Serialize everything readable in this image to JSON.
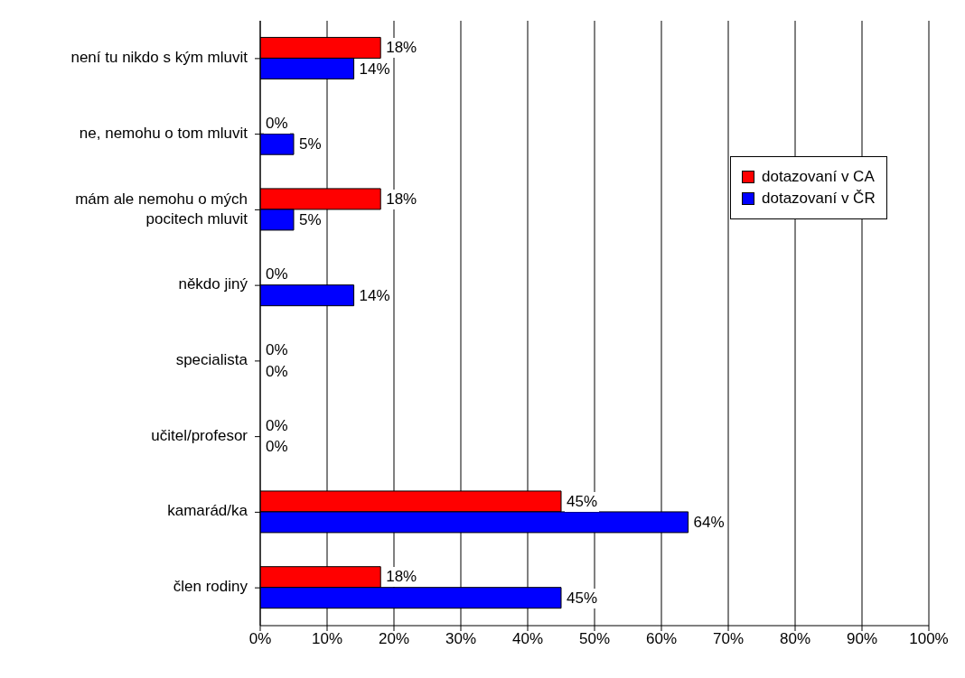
{
  "chart_data": {
    "type": "bar",
    "orientation": "horizontal",
    "categories": [
      "není tu nikdo s kým mluvit",
      "ne, nemohu o tom mluvit",
      "mám ale nemohu o mých pocitech mluvit",
      "někdo jiný",
      "specialista",
      "učitel/profesor",
      "kamarád/ka",
      "člen rodiny"
    ],
    "series": [
      {
        "name": "dotazovaní v CA",
        "color": "#ff0000",
        "values": [
          18,
          0,
          18,
          0,
          0,
          0,
          45,
          18
        ],
        "value_labels": [
          "18%",
          "0%",
          "18%",
          "0%",
          "0%",
          "0%",
          "45%",
          "18%"
        ]
      },
      {
        "name": "dotazovaní v ČR",
        "color": "#0000ff",
        "values": [
          14,
          5,
          5,
          14,
          0,
          0,
          64,
          45
        ],
        "value_labels": [
          "14%",
          "5%",
          "5%",
          "14%",
          "0%",
          "0%",
          "64%",
          "45%"
        ]
      }
    ],
    "xlim": [
      0,
      100
    ],
    "xticks": [
      {
        "value": 0,
        "label": "0%"
      },
      {
        "value": 10,
        "label": "10%"
      },
      {
        "value": 20,
        "label": "20%"
      },
      {
        "value": 30,
        "label": "30%"
      },
      {
        "value": 40,
        "label": "40%"
      },
      {
        "value": 50,
        "label": "50%"
      },
      {
        "value": 60,
        "label": "60%"
      },
      {
        "value": 70,
        "label": "70%"
      },
      {
        "value": 80,
        "label": "80%"
      },
      {
        "value": 90,
        "label": "90%"
      },
      {
        "value": 100,
        "label": "100%"
      }
    ],
    "grid": "x",
    "legend": "right"
  }
}
